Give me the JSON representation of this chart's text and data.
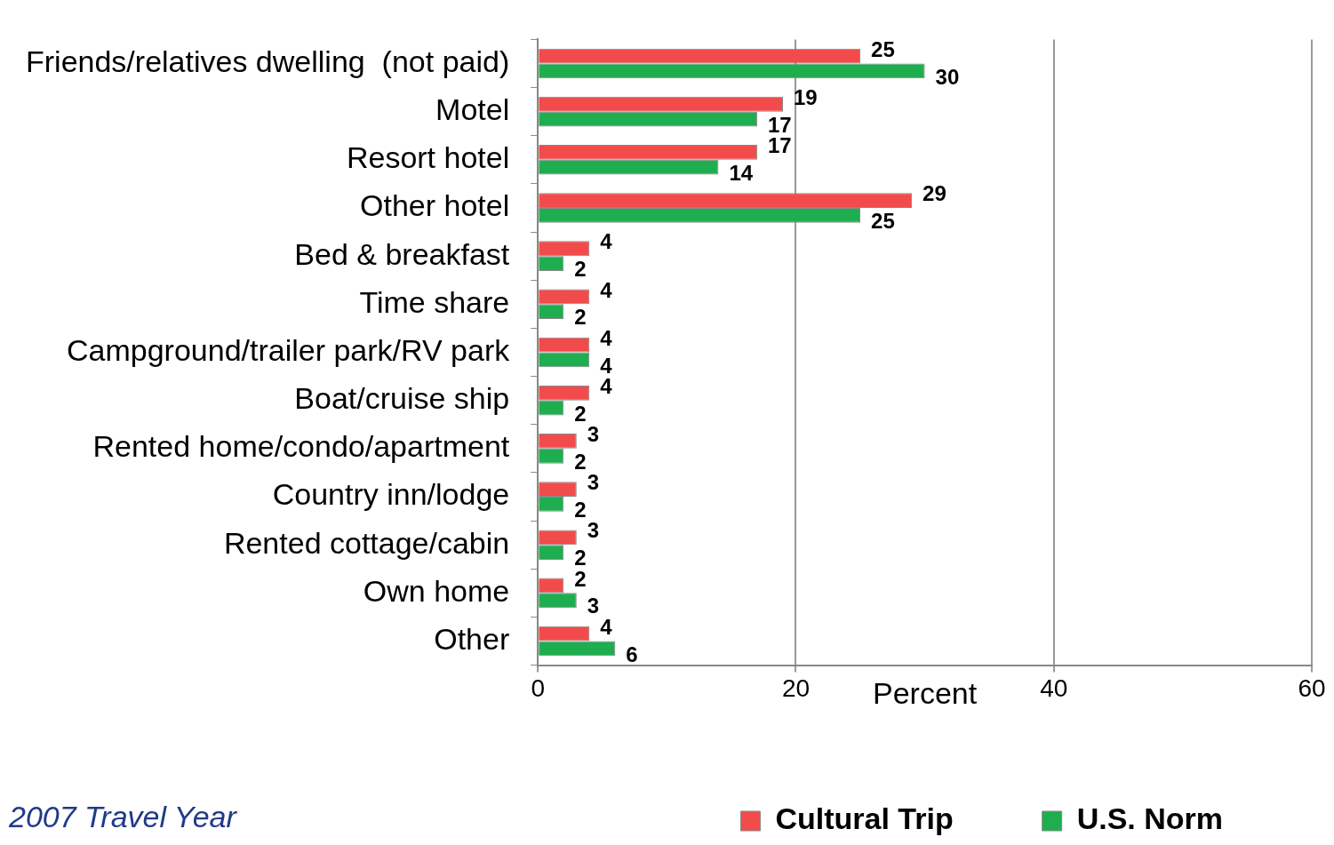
{
  "chart_data": {
    "type": "bar",
    "orientation": "horizontal",
    "categories": [
      "Friends/relatives dwelling  (not paid)",
      "Motel",
      "Resort hotel",
      "Other hotel",
      "Bed & breakfast",
      "Time share",
      "Campground/trailer park/RV park",
      "Boat/cruise ship",
      "Rented home/condo/apartment",
      "Country inn/lodge",
      "Rented cottage/cabin",
      "Own home",
      "Other"
    ],
    "series": [
      {
        "name": "Cultural Trip",
        "color": "#f24b4b",
        "values": [
          25,
          19,
          17,
          29,
          4,
          4,
          4,
          4,
          3,
          3,
          3,
          2,
          4
        ]
      },
      {
        "name": "U.S. Norm",
        "color": "#1fae4f",
        "values": [
          30,
          17,
          14,
          25,
          2,
          2,
          4,
          2,
          2,
          2,
          2,
          3,
          6
        ]
      }
    ],
    "xlim": [
      0,
      60
    ],
    "xticks": [
      0,
      20,
      40,
      60
    ],
    "xlabel": "Percent",
    "grid": "x",
    "legend": "bottom",
    "data_labels": true,
    "annotations": [
      "2007 Travel Year"
    ]
  }
}
